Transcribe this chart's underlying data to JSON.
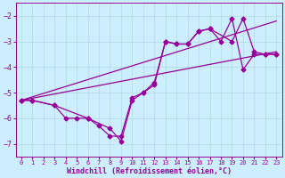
{
  "background_color": "#cceeff",
  "line_color": "#990099",
  "grid_color": "#b0dde0",
  "xlabel": "Windchill (Refroidissement éolien,°C)",
  "xlim": [
    -0.5,
    23.5
  ],
  "ylim": [
    -7.5,
    -1.5
  ],
  "yticks": [
    -7,
    -6,
    -5,
    -4,
    -3,
    -2
  ],
  "xticks": [
    0,
    1,
    2,
    3,
    4,
    5,
    6,
    7,
    8,
    9,
    10,
    11,
    12,
    13,
    14,
    15,
    16,
    17,
    18,
    19,
    20,
    21,
    22,
    23
  ],
  "series1_x": [
    0,
    1,
    3,
    4,
    5,
    6,
    7,
    8,
    9,
    10,
    11,
    12,
    13,
    14,
    15,
    16,
    17,
    18,
    19,
    20,
    21,
    22,
    23
  ],
  "series1_y": [
    -5.3,
    -5.3,
    -5.5,
    -6.0,
    -6.0,
    -6.0,
    -6.3,
    -6.7,
    -6.7,
    -5.2,
    -5.0,
    -4.6,
    -3.0,
    -3.1,
    -3.1,
    -2.6,
    -2.5,
    -3.0,
    -2.1,
    -4.1,
    -3.5,
    -3.5,
    -3.5
  ],
  "series2_x": [
    0,
    1,
    3,
    6,
    8,
    9,
    10,
    11,
    12,
    13,
    14,
    15,
    16,
    17,
    19,
    20,
    21,
    22,
    23
  ],
  "series2_y": [
    -5.3,
    -5.3,
    -5.5,
    -6.0,
    -6.4,
    -6.9,
    -5.3,
    -5.0,
    -4.7,
    -3.0,
    -3.1,
    -3.1,
    -2.6,
    -2.5,
    -3.0,
    -2.1,
    -3.4,
    -3.5,
    -3.5
  ],
  "line1_x": [
    0,
    23
  ],
  "line1_y": [
    -5.3,
    -2.2
  ],
  "line2_x": [
    0,
    23
  ],
  "line2_y": [
    -5.3,
    -3.4
  ],
  "markersize": 2.5,
  "linewidth": 0.9
}
